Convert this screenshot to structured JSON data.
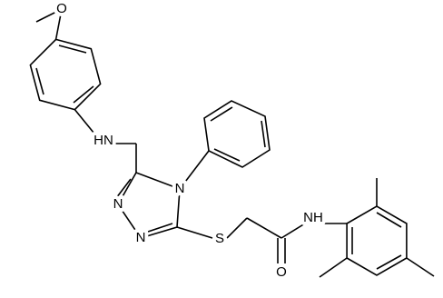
{
  "atoms": [
    "O",
    "HN",
    "N",
    "N",
    "N",
    "S",
    "O",
    "NH"
  ]
}
